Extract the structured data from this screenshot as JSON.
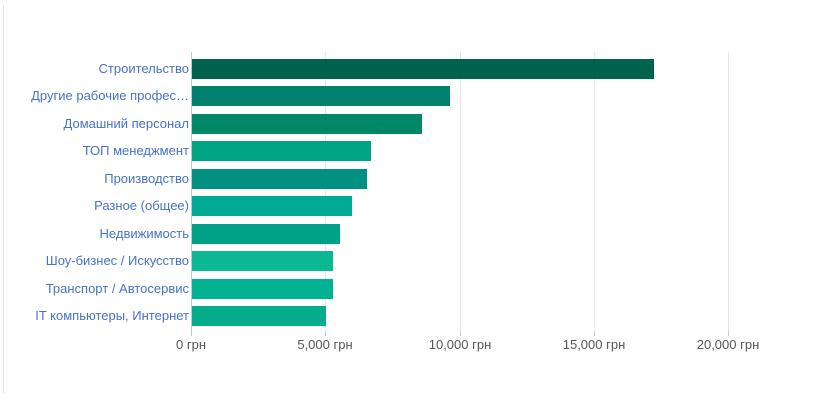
{
  "chart_data": {
    "type": "bar",
    "orientation": "horizontal",
    "title": "",
    "xlabel": "",
    "ylabel": "",
    "unit": "грн",
    "categories": [
      "Строительство",
      "Другие рабочие профес…",
      "Домашний персонал",
      "ТОП менеджмент",
      "Производство",
      "Разное (общее)",
      "Недвижимость",
      "Шоу-бизнес / Искусство",
      "Транспорт / Автосервис",
      "IT компьютеры, Интернет"
    ],
    "values": [
      17200,
      9600,
      8550,
      6650,
      6500,
      5950,
      5500,
      5250,
      5250,
      5000
    ],
    "bar_colors": [
      "#00634f",
      "#008170",
      "#008767",
      "#00a383",
      "#009180",
      "#00ab95",
      "#00a287",
      "#0bb893",
      "#00b292",
      "#05ad8c"
    ],
    "x_ticks": [
      {
        "value": 0,
        "label": "0 грн"
      },
      {
        "value": 5000,
        "label": "5,000 грн"
      },
      {
        "value": 10000,
        "label": "10,000 грн"
      },
      {
        "value": 15000,
        "label": "15,000 грн"
      },
      {
        "value": 20000,
        "label": "20,000 грн"
      }
    ],
    "xlim": [
      0,
      22000
    ],
    "grid": "vertical gridlines on",
    "legend": "none"
  },
  "colors": {
    "category_label": "#4673c8",
    "axis_label": "#54565a",
    "gridline": "#e6e6e6",
    "tick": "#c9c9c9",
    "zero_line": "#a3d8c6",
    "background": "#ffffff",
    "page_border": "#e3e3e3"
  }
}
